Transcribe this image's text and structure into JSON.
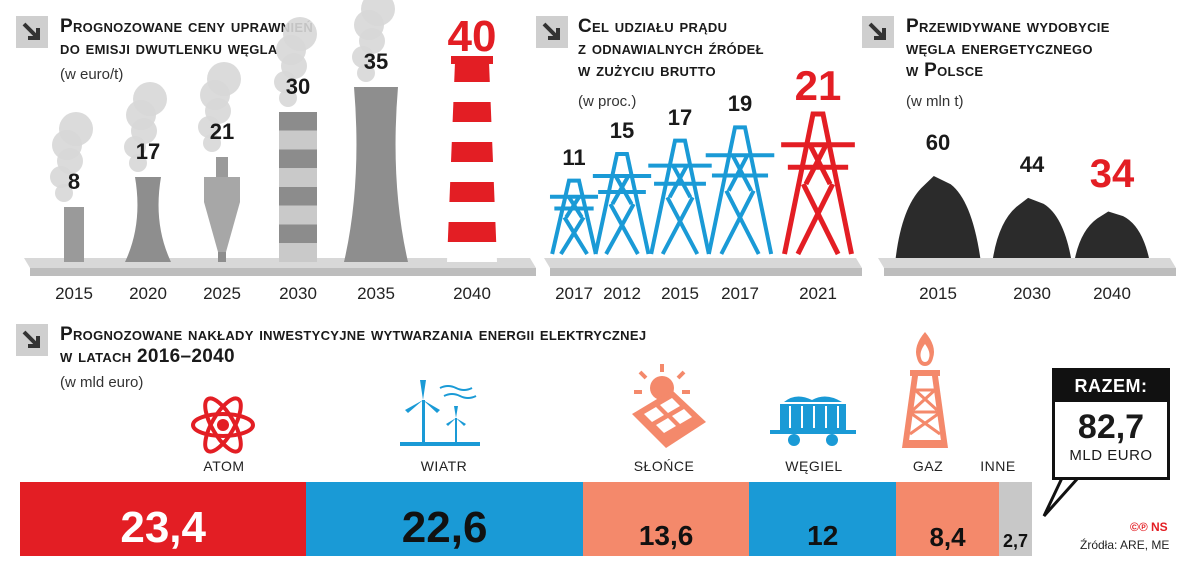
{
  "colors": {
    "red": "#e31e24",
    "blue": "#1a9ad6",
    "salmon": "#f4896b",
    "grey": "#c8c8c8",
    "dark": "#2b2b2b"
  },
  "panel1": {
    "title_l1": "Prognozowane ceny uprawnień",
    "title_l2": "do emisji dwutlenku węgla",
    "unit": "(w euro/t)"
  },
  "panel2": {
    "title_l1": "Cel udziału prądu",
    "title_l2": "z odnawialnych źródeł",
    "title_l3": "w zużyciu brutto",
    "unit": "(w proc.)"
  },
  "panel3": {
    "title_l1": "Przewidywane wydobycie",
    "title_l2": "węgla energetycznego",
    "title_l3": "w Polsce",
    "unit": "(w mln t)"
  },
  "panel4": {
    "title_l1": "Prognozowane nakłady inwestycyjne wytwarzania energii elektrycznej",
    "title_l2": "w latach 2016–2040",
    "unit": "(w mld euro)"
  },
  "razem": {
    "label": "RAZEM:",
    "value": "82,7",
    "unit": "MLD EURO"
  },
  "footer": {
    "copyright": "©℗ NS",
    "source": "Źródła: ARE, ME"
  },
  "chart_data": [
    {
      "type": "bar",
      "title": "Prognozowane ceny uprawnień do emisji dwutlenku węgla",
      "ylabel": "(w euro/t)",
      "categories": [
        "2015",
        "2020",
        "2025",
        "2030",
        "2035",
        "2040"
      ],
      "values": [
        8,
        17,
        21,
        30,
        35,
        40
      ],
      "value_labels": [
        "8",
        "17",
        "21",
        "30",
        "35",
        "40"
      ]
    },
    {
      "type": "bar",
      "title": "Cel udziału prądu z odnawialnych źródeł w zużyciu brutto",
      "ylabel": "(w proc.)",
      "categories": [
        "2017",
        "2012",
        "2015",
        "2017",
        "2021"
      ],
      "values": [
        11,
        15,
        17,
        19,
        21
      ],
      "value_labels": [
        "11",
        "15",
        "17",
        "19",
        "21"
      ]
    },
    {
      "type": "bar",
      "title": "Przewidywane wydobycie węgla energetycznego w Polsce",
      "ylabel": "(w mln t)",
      "categories": [
        "2015",
        "2030",
        "2040"
      ],
      "values": [
        60,
        44,
        34
      ],
      "value_labels": [
        "60",
        "44",
        "34"
      ]
    },
    {
      "type": "bar",
      "title": "Prognozowane nakłady inwestycyjne wytwarzania energii elektrycznej w latach 2016–2040",
      "ylabel": "(w mld euro)",
      "categories": [
        "ATOM",
        "WIATR",
        "SŁOŃCE",
        "WĘGIEL",
        "GAZ",
        "INNE"
      ],
      "values": [
        23.4,
        22.6,
        13.6,
        12,
        8.4,
        2.7
      ],
      "value_labels": [
        "23,4",
        "22,6",
        "13,6",
        "12",
        "8,4",
        "2,7"
      ],
      "total": 82.7
    }
  ]
}
